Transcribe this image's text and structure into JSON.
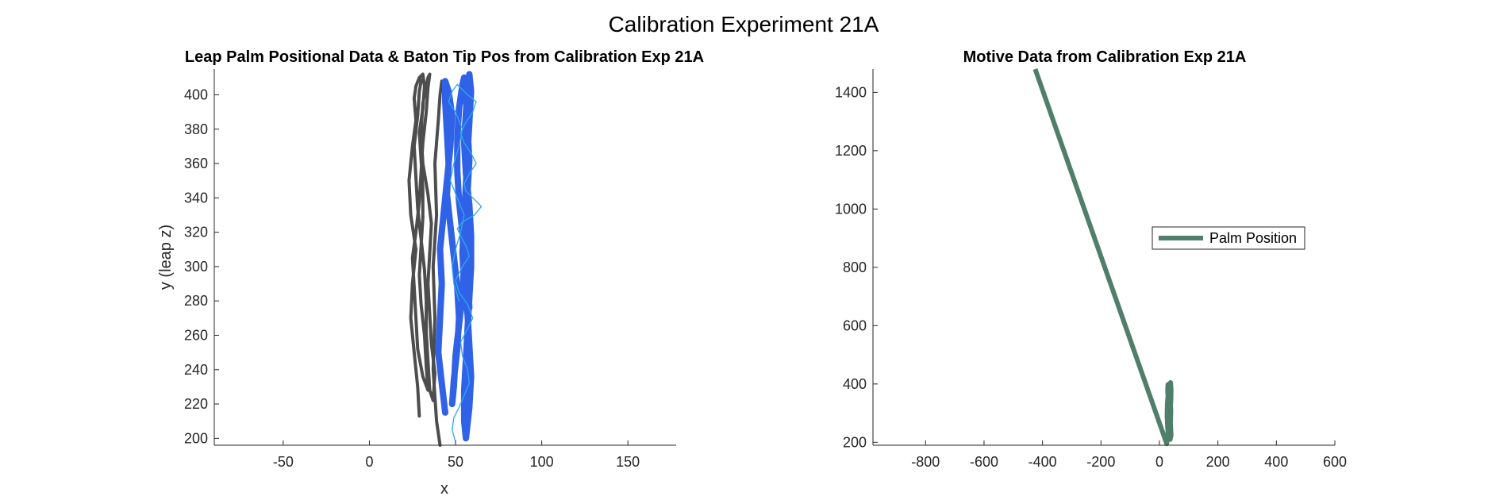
{
  "figure": {
    "title": "Calibration Experiment 21A"
  },
  "chart_data": [
    {
      "type": "line",
      "title": "Leap Palm Positional Data & Baton Tip Pos from Calibration Exp 21A",
      "xlabel": "x",
      "ylabel": "y (leap z)",
      "xlim": [
        -90,
        178
      ],
      "ylim": [
        196,
        415
      ],
      "xticks": [
        -50,
        0,
        50,
        100,
        150
      ],
      "yticks": [
        200,
        220,
        240,
        260,
        280,
        300,
        320,
        340,
        360,
        380,
        400
      ],
      "grid": false,
      "colors": {
        "palm": "#4d4d4d",
        "baton_thick": "#2f62e6",
        "baton_thin": "#2fa8f0"
      },
      "series": [
        {
          "x": [
            29,
            28,
            26,
            24,
            25,
            27,
            24,
            23,
            25,
            27,
            26,
            27,
            29,
            31,
            32,
            31,
            29,
            30,
            31,
            31,
            30,
            29,
            30,
            32,
            33,
            34,
            31,
            28,
            27,
            26,
            25,
            27,
            29,
            30,
            31,
            33,
            34,
            35,
            34,
            31,
            30,
            31,
            34,
            36,
            35,
            34,
            35,
            36,
            38,
            37,
            35,
            34,
            33,
            33,
            32,
            30,
            28,
            27,
            26,
            28,
            29,
            30,
            29
          ],
          "y": [
            213,
            230,
            250,
            270,
            290,
            310,
            330,
            350,
            370,
            385,
            398,
            405,
            410,
            412,
            405,
            392,
            378,
            362,
            345,
            328,
            312,
            295,
            278,
            260,
            242,
            228,
            236,
            252,
            270,
            288,
            305,
            320,
            338,
            355,
            372,
            390,
            404,
            412,
            410,
            395,
            378,
            360,
            342,
            325,
            308,
            290,
            272,
            255,
            238,
            222,
            228,
            245,
            262,
            280,
            298,
            316,
            334,
            352,
            370,
            388,
            402,
            408,
            410
          ]
        },
        {
          "x": [
            41,
            39,
            37,
            38,
            37,
            39,
            38,
            40,
            41,
            42
          ],
          "y": [
            196,
            210,
            240,
            270,
            300,
            330,
            360,
            385,
            400,
            408
          ]
        },
        {
          "x": [
            44,
            42,
            40,
            41,
            42,
            41,
            43,
            45,
            47,
            48,
            46,
            44,
            44,
            45,
            46,
            45,
            47,
            49,
            51,
            52,
            51,
            49,
            48,
            49,
            50,
            52,
            54,
            55,
            54,
            52,
            51,
            51,
            52,
            54,
            55,
            56,
            57,
            58,
            57,
            55,
            54,
            55,
            57,
            58,
            59,
            58,
            56,
            55,
            55,
            56,
            57,
            58,
            59,
            59,
            58,
            56,
            55,
            56,
            57,
            58,
            59,
            58,
            57,
            56,
            55,
            56,
            57,
            58
          ],
          "y": [
            215,
            232,
            250,
            270,
            290,
            310,
            330,
            350,
            370,
            388,
            402,
            408,
            396,
            378,
            360,
            342,
            324,
            306,
            288,
            270,
            252,
            234,
            220,
            230,
            248,
            266,
            284,
            302,
            320,
            338,
            356,
            374,
            392,
            406,
            410,
            398,
            380,
            362,
            344,
            326,
            308,
            290,
            272,
            254,
            236,
            218,
            200,
            210,
            228,
            246,
            264,
            282,
            300,
            318,
            336,
            354,
            372,
            390,
            404,
            412,
            402,
            384,
            366,
            348,
            330,
            312,
            294,
            276
          ]
        },
        {
          "x": [
            50,
            48,
            49,
            52,
            55,
            58,
            57,
            54,
            53,
            56,
            60,
            57,
            52,
            50,
            54,
            58,
            56,
            53,
            51,
            54,
            61,
            65,
            60,
            56,
            55,
            58,
            62,
            59,
            55,
            53,
            56,
            60,
            62,
            57,
            53,
            51,
            48,
            46,
            50,
            54,
            52,
            49,
            47,
            51,
            55,
            53,
            50,
            48,
            49,
            52
          ],
          "y": [
            198,
            205,
            212,
            218,
            225,
            232,
            240,
            248,
            256,
            262,
            270,
            278,
            285,
            292,
            300,
            306,
            312,
            318,
            322,
            326,
            330,
            335,
            340,
            344,
            348,
            354,
            360,
            366,
            372,
            378,
            384,
            390,
            396,
            400,
            404,
            406,
            402,
            396,
            390,
            380,
            370,
            360,
            350,
            340,
            330,
            320,
            310,
            300,
            290,
            280
          ]
        }
      ]
    },
    {
      "type": "line",
      "title": "Motive Data from Calibration Exp 21A",
      "xlabel": "",
      "ylabel": "",
      "xlim": [
        -980,
        600
      ],
      "ylim": [
        190,
        1480
      ],
      "xticks": [
        -800,
        -600,
        -400,
        -200,
        0,
        200,
        400,
        600
      ],
      "yticks": [
        200,
        400,
        600,
        800,
        1000,
        1200,
        1400
      ],
      "grid": false,
      "legend": {
        "position": "right",
        "entries": [
          "Palm Position"
        ]
      },
      "colors": {
        "line": "#4f7f6a"
      },
      "series": [
        {
          "name": "Palm Position",
          "x": [
            -425,
            25,
            28,
            32,
            36,
            39,
            40,
            38,
            34,
            30,
            27,
            26,
            28,
            31,
            35,
            38,
            39,
            36,
            32,
            29,
            28,
            30,
            34,
            38,
            40,
            37,
            33,
            30,
            29,
            31,
            35,
            38,
            36,
            33,
            31,
            30
          ],
          "y": [
            1480,
            195,
            220,
            260,
            300,
            340,
            380,
            405,
            400,
            370,
            330,
            290,
            250,
            215,
            230,
            270,
            310,
            350,
            385,
            398,
            380,
            340,
            300,
            260,
            225,
            210,
            245,
            285,
            325,
            365,
            395,
            375,
            335,
            295,
            255,
            225
          ]
        }
      ]
    }
  ]
}
